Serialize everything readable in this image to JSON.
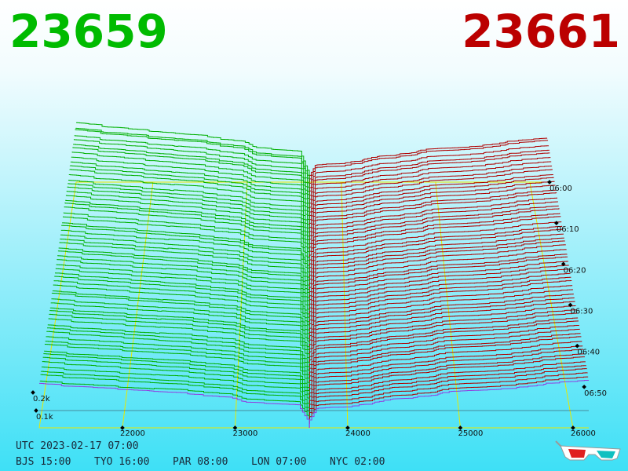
{
  "header": {
    "bid": "23659",
    "ask": "23661"
  },
  "axis": {
    "price_labels": [
      22000,
      23000,
      24000,
      25000,
      26000
    ],
    "quantity_labels": [
      "0.2k",
      "0.1k"
    ],
    "time_labels": [
      "06:00",
      "06:10",
      "06:20",
      "06:30",
      "06:40",
      "06:50"
    ]
  },
  "footer": {
    "utc": "UTC 2023-02-17 07:00",
    "cities": [
      "BJS 15:00",
      "TYO 16:00",
      "PAR 08:00",
      "LON 07:00",
      "NYC 02:00"
    ]
  }
}
